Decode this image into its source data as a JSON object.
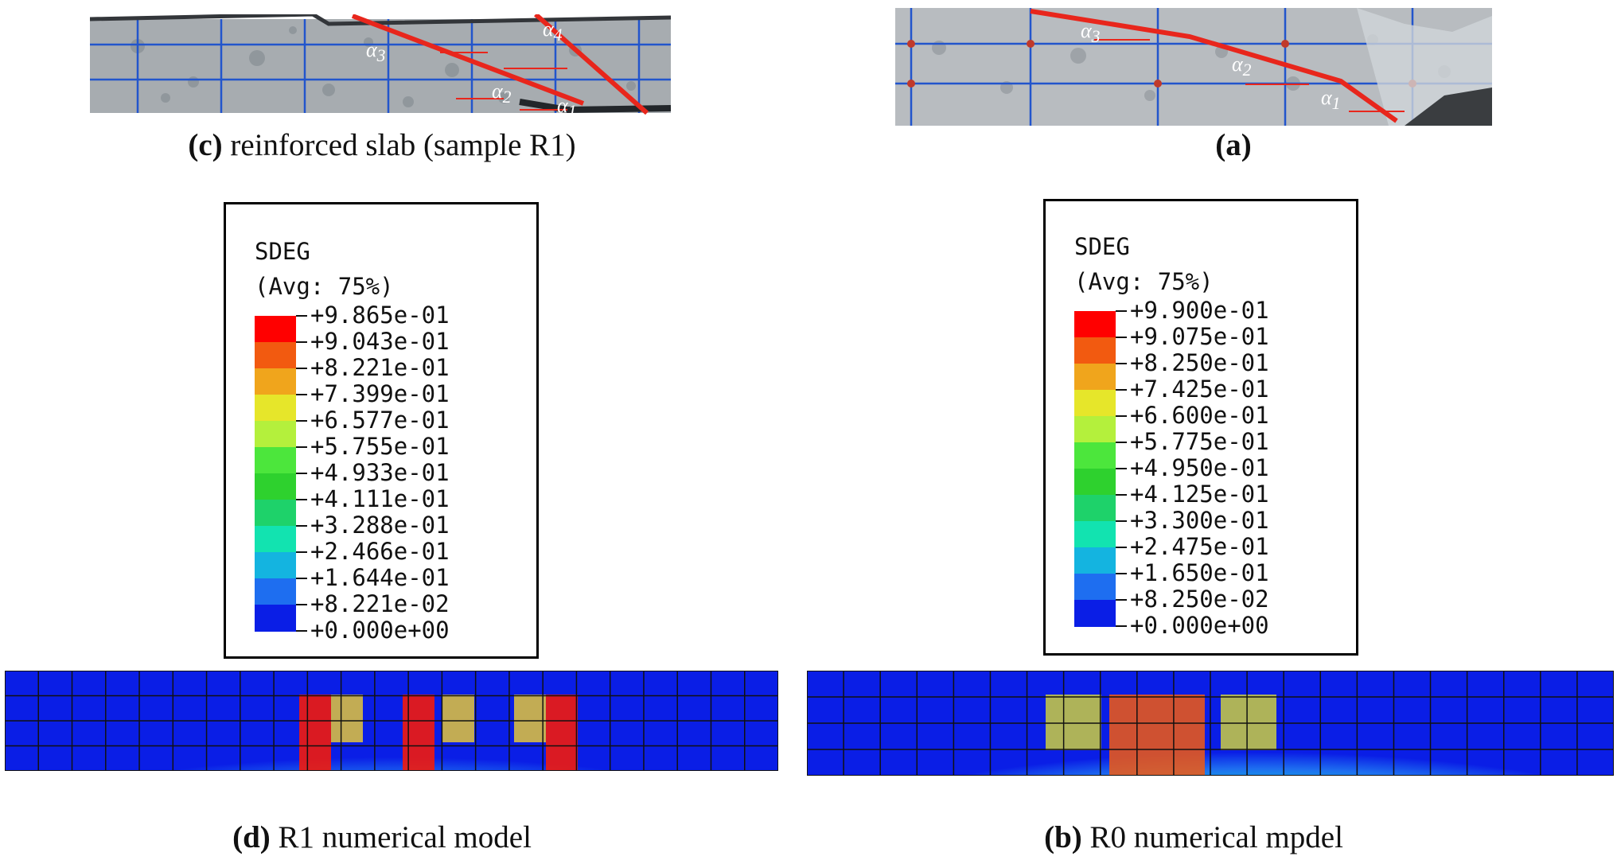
{
  "panels": {
    "c": {
      "letter": "(c)",
      "text": " reinforced slab (sample R1)",
      "angles": [
        "α",
        "α",
        "α",
        "α"
      ],
      "angle_subs": [
        "4",
        "3",
        "2",
        "1"
      ]
    },
    "a": {
      "letter": "(a)",
      "text": "",
      "angles": [
        "α",
        "α",
        "α"
      ],
      "angle_subs": [
        "3",
        "2",
        "1"
      ]
    },
    "d": {
      "letter": "(d)",
      "text": " R1 numerical model"
    },
    "b": {
      "letter": "(b)",
      "text": " R0 numerical mpdel"
    }
  },
  "legend_left": {
    "title": "SDEG",
    "subtitle": "(Avg: 75%)",
    "values": [
      "+9.865e-01",
      "+9.043e-01",
      "+8.221e-01",
      "+7.399e-01",
      "+6.577e-01",
      "+5.755e-01",
      "+4.933e-01",
      "+4.111e-01",
      "+3.288e-01",
      "+2.466e-01",
      "+1.644e-01",
      "+8.221e-02",
      "+0.000e+00"
    ]
  },
  "legend_right": {
    "title": "SDEG",
    "subtitle": "(Avg: 75%)",
    "values": [
      "+9.900e-01",
      "+9.075e-01",
      "+8.250e-01",
      "+7.425e-01",
      "+6.600e-01",
      "+5.775e-01",
      "+4.950e-01",
      "+4.125e-01",
      "+3.300e-01",
      "+2.475e-01",
      "+1.650e-01",
      "+8.250e-02",
      "+0.000e+00"
    ]
  },
  "colors": {
    "scale": [
      "#ff0000",
      "#f25a10",
      "#f0a51c",
      "#e6e62a",
      "#b4f03c",
      "#4ce63c",
      "#2ed12e",
      "#1ed26a",
      "#12e3b0",
      "#14b4e0",
      "#1e6ef0",
      "#0a1ee6"
    ],
    "crack": "#e8261c"
  }
}
